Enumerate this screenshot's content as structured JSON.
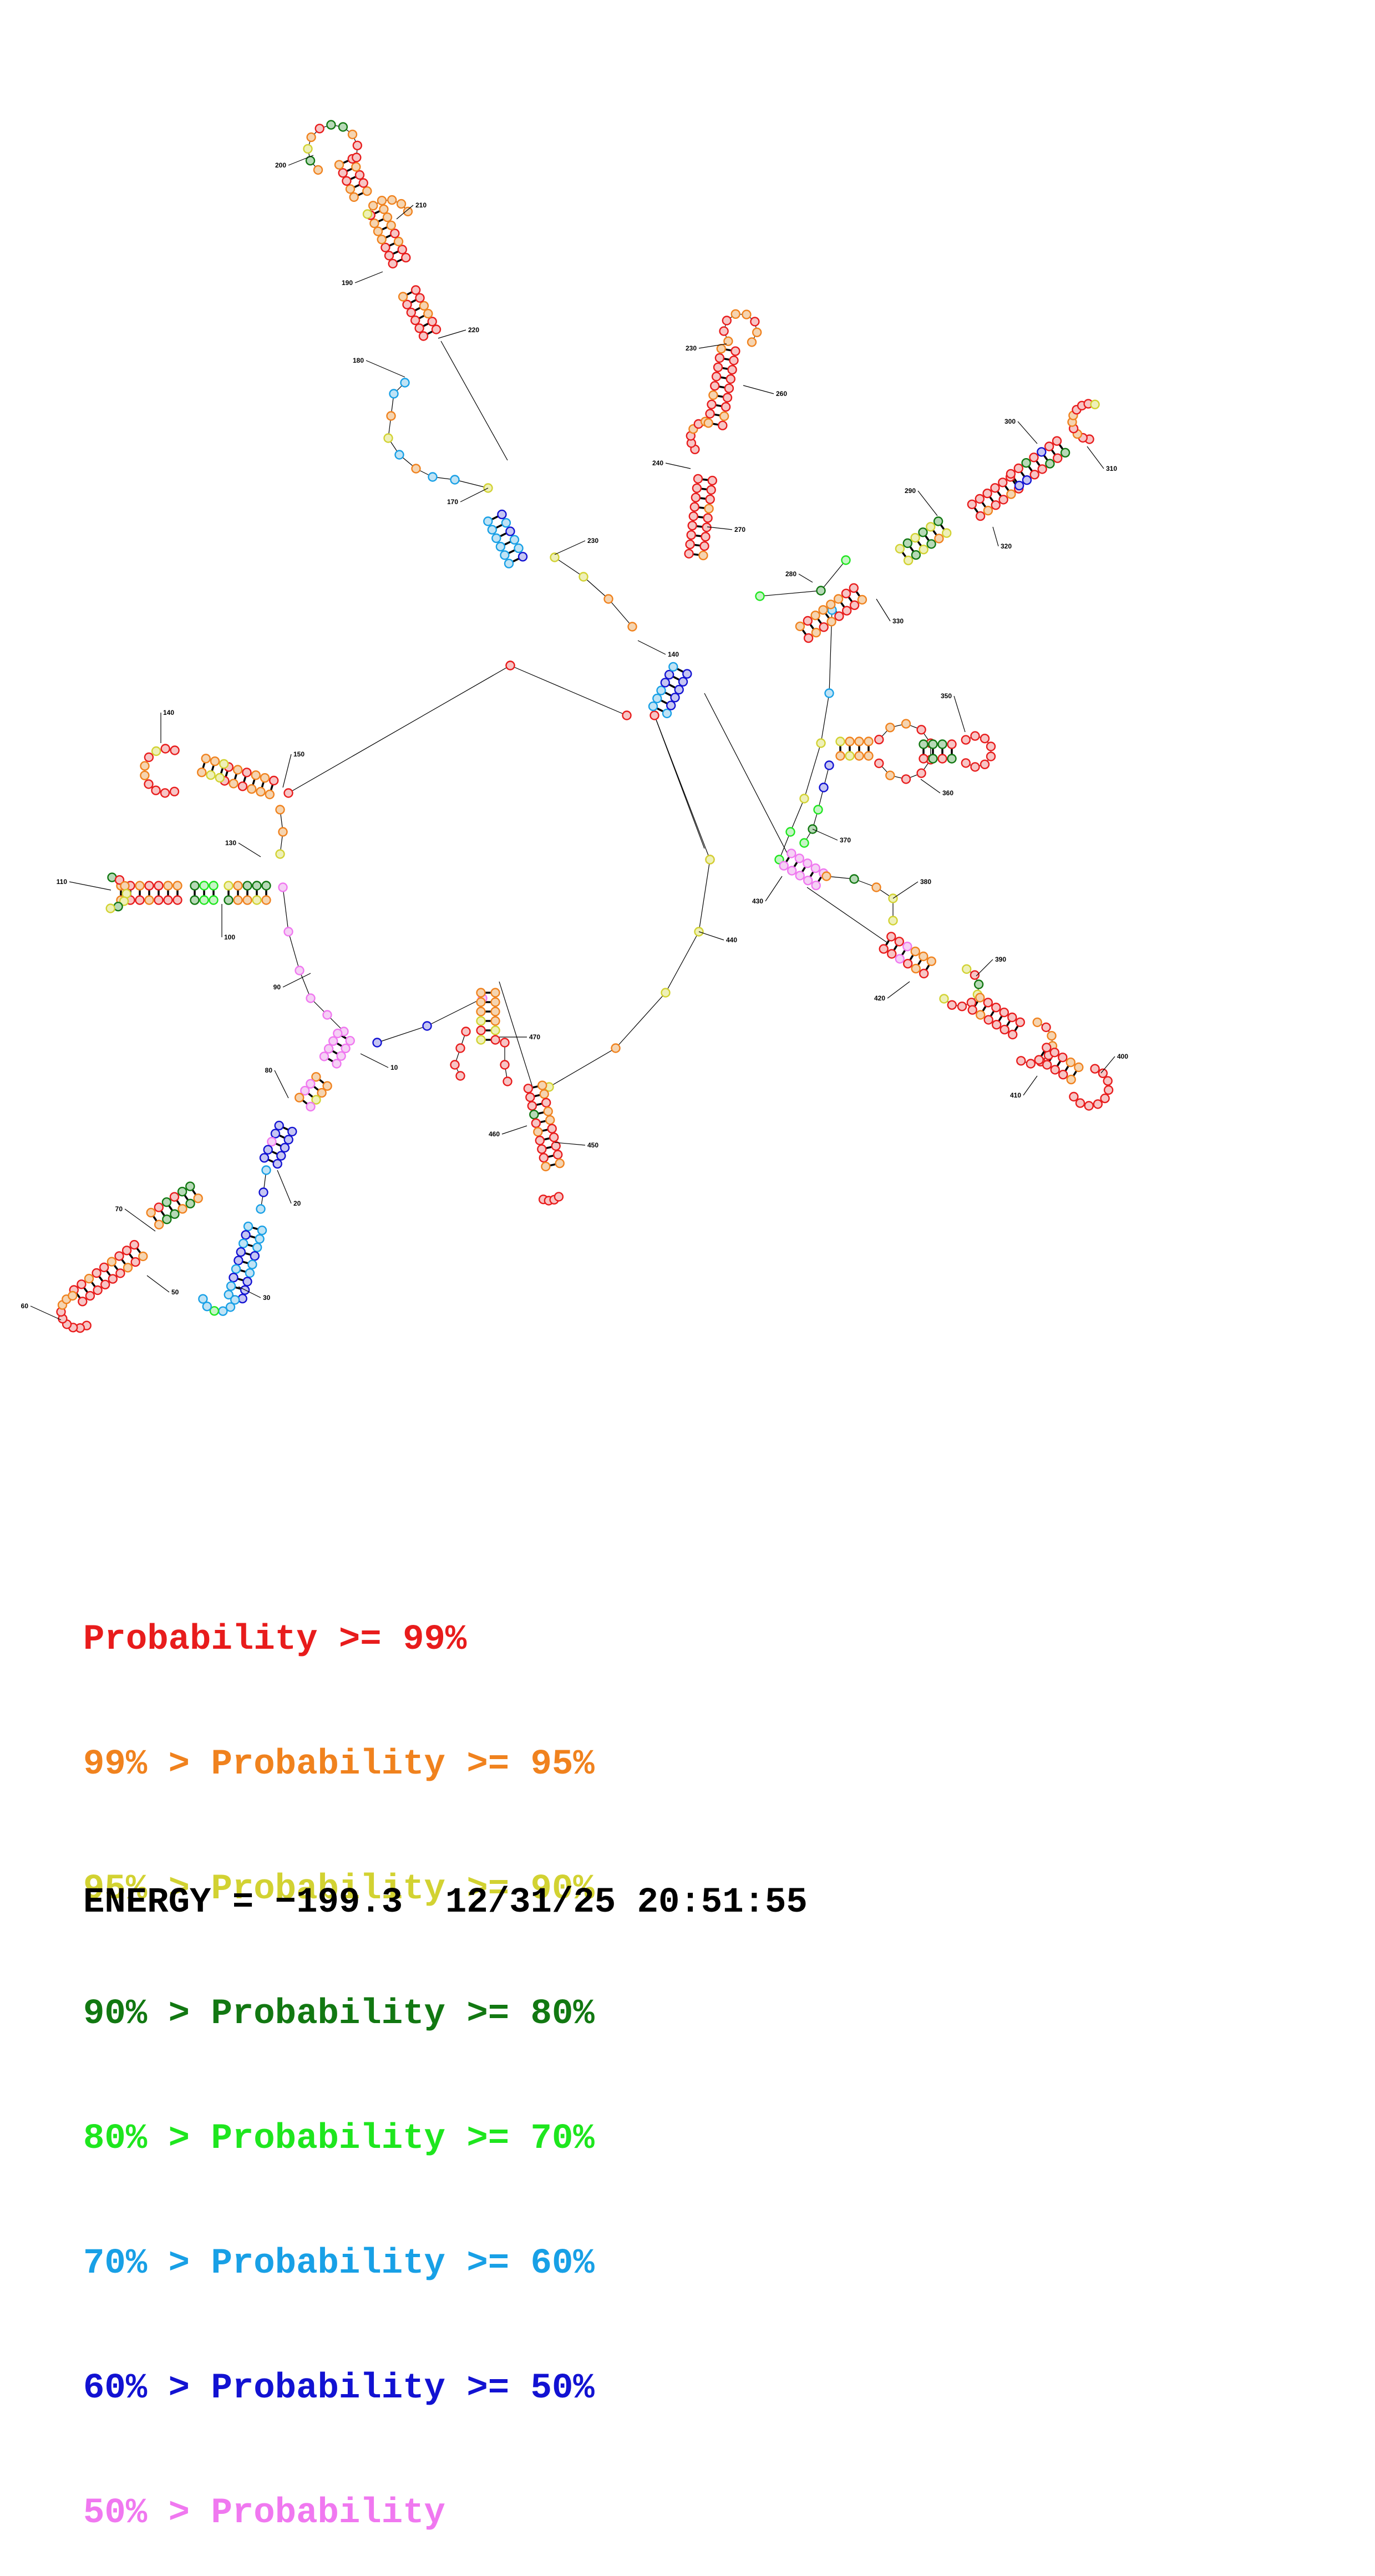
{
  "legend": [
    {
      "prefix": "",
      "label": "Probability >= 99%",
      "color": "#e81c1c"
    },
    {
      "prefix": "99% > ",
      "label": "Probability >= 95%",
      "color": "#f0821e"
    },
    {
      "prefix": "95% > ",
      "label": "Probability >= 90%",
      "color": "#d2d232"
    },
    {
      "prefix": "90% > ",
      "label": "Probability >= 80%",
      "color": "#127812"
    },
    {
      "prefix": "80% > ",
      "label": "Probability >= 70%",
      "color": "#1ee61e"
    },
    {
      "prefix": "70% > ",
      "label": "Probability >= 60%",
      "color": "#18a0e6"
    },
    {
      "prefix": "60% > ",
      "label": "Probability >= 50%",
      "color": "#1212d2"
    },
    {
      "prefix": "50% > ",
      "label": "Probability",
      "color": "#f078f0"
    }
  ],
  "footer": {
    "energy_label": "ENERGY = ",
    "energy_value": "−199.3",
    "date": "12/31/25",
    "time": "20:51:55"
  },
  "position_labels": [
    "10",
    "20",
    "30",
    "50",
    "60",
    "70",
    "80",
    "90",
    "100",
    "110",
    "130",
    "140",
    "140",
    "150",
    "170",
    "180",
    "190",
    "200",
    "210",
    "220",
    "230",
    "230",
    "240",
    "260",
    "270",
    "280",
    "290",
    "300",
    "310",
    "320",
    "330",
    "350",
    "360",
    "370",
    "380",
    "390",
    "400",
    "410",
    "420",
    "430",
    "440",
    "450",
    "460",
    "470"
  ],
  "probability_colors": {
    "red": "#e81c1c",
    "orange": "#f0821e",
    "yellow": "#d2d232",
    "darkgreen": "#127812",
    "green": "#1ee61e",
    "cyan": "#18a0e6",
    "blue": "#1212d2",
    "pink": "#f078f0"
  }
}
